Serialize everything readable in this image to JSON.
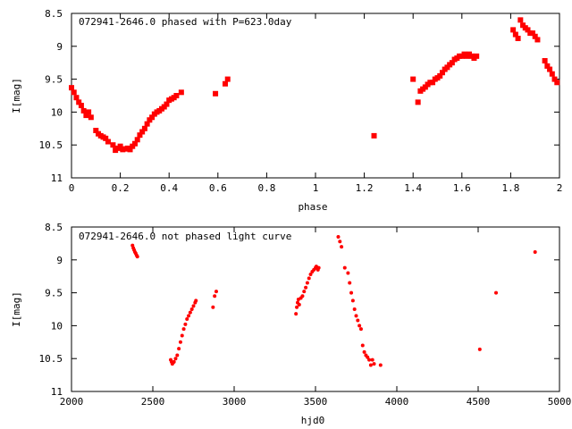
{
  "chart_data": [
    {
      "type": "scatter",
      "title": "072941-2646.0 phased with P=623.0day",
      "xlabel": "phase",
      "ylabel": "I[mag]",
      "xlim": [
        0,
        2
      ],
      "ylim": [
        8.5,
        11
      ],
      "y_inverted": true,
      "xticks": [
        "0",
        "0.2",
        "0.4",
        "0.6",
        "0.8",
        "1",
        "1.2",
        "1.4",
        "1.6",
        "1.8",
        "2"
      ],
      "yticks": [
        "8.5",
        "9",
        "9.5",
        "10",
        "10.5",
        "11"
      ],
      "marker_color": "#ff0000",
      "series": [
        {
          "x": [
            0.0,
            0.01,
            0.02,
            0.03,
            0.04,
            0.05,
            0.06,
            0.07,
            0.08,
            0.1,
            0.11,
            0.12,
            0.13,
            0.14,
            0.15,
            0.17,
            0.18,
            0.19,
            0.2,
            0.21,
            0.22,
            0.23,
            0.24,
            0.25,
            0.26,
            0.27,
            0.28,
            0.29,
            0.3,
            0.31,
            0.32,
            0.33,
            0.34,
            0.35,
            0.36,
            0.37,
            0.38,
            0.39,
            0.4,
            0.41,
            0.42,
            0.43,
            0.45,
            0.59,
            0.63,
            0.64,
            1.24,
            1.4,
            1.42,
            1.43,
            1.44,
            1.45,
            1.46,
            1.47,
            1.48,
            1.49,
            1.5,
            1.51,
            1.52,
            1.53,
            1.54,
            1.55,
            1.56,
            1.57,
            1.58,
            1.59,
            1.6,
            1.61,
            1.62,
            1.63,
            1.64,
            1.65,
            1.66,
            1.81,
            1.82,
            1.83,
            1.84,
            1.85,
            1.86,
            1.87,
            1.88,
            1.89,
            1.9,
            1.91,
            1.94,
            1.95,
            1.96,
            1.97,
            1.98,
            1.99
          ],
          "y": [
            9.63,
            9.7,
            9.78,
            9.85,
            9.9,
            9.98,
            10.05,
            10.0,
            10.08,
            10.28,
            10.33,
            10.36,
            10.38,
            10.4,
            10.45,
            10.5,
            10.58,
            10.55,
            10.52,
            10.57,
            10.56,
            10.55,
            10.57,
            10.52,
            10.48,
            10.42,
            10.35,
            10.3,
            10.25,
            10.18,
            10.12,
            10.08,
            10.03,
            10.0,
            9.98,
            9.95,
            9.92,
            9.88,
            9.82,
            9.8,
            9.78,
            9.75,
            9.7,
            9.72,
            9.57,
            9.5,
            10.36,
            9.5,
            9.85,
            9.68,
            9.65,
            9.62,
            9.58,
            9.55,
            9.55,
            9.5,
            9.48,
            9.45,
            9.4,
            9.35,
            9.32,
            9.28,
            9.25,
            9.2,
            9.18,
            9.15,
            9.15,
            9.12,
            9.15,
            9.12,
            9.15,
            9.18,
            9.15,
            8.75,
            8.82,
            8.88,
            8.6,
            8.68,
            8.72,
            8.75,
            8.8,
            8.8,
            8.85,
            8.9,
            9.22,
            9.3,
            9.35,
            9.42,
            9.5,
            9.55
          ]
        }
      ]
    },
    {
      "type": "scatter",
      "title": "072941-2646.0 not phased light curve",
      "xlabel": "hjd0",
      "ylabel": "I[mag]",
      "xlim": [
        2000,
        5000
      ],
      "ylim": [
        8.5,
        11
      ],
      "y_inverted": true,
      "xticks": [
        "2000",
        "2500",
        "3000",
        "3500",
        "4000",
        "4500",
        "5000"
      ],
      "yticks": [
        "8.5",
        "9",
        "9.5",
        "10",
        "10.5",
        "11"
      ],
      "marker_color": "#ff0000",
      "series": [
        {
          "x": [
            2375,
            2380,
            2385,
            2390,
            2395,
            2400,
            2405,
            2610,
            2615,
            2620,
            2625,
            2630,
            2640,
            2650,
            2660,
            2670,
            2680,
            2690,
            2700,
            2710,
            2720,
            2730,
            2740,
            2750,
            2760,
            2765,
            2870,
            2880,
            2890,
            3380,
            3385,
            3390,
            3395,
            3400,
            3410,
            3420,
            3430,
            3440,
            3450,
            3460,
            3470,
            3480,
            3490,
            3500,
            3505,
            3510,
            3515,
            3520,
            3640,
            3650,
            3660,
            3680,
            3700,
            3710,
            3720,
            3730,
            3740,
            3750,
            3760,
            3770,
            3780,
            3790,
            3800,
            3810,
            3820,
            3830,
            3840,
            3850,
            3860,
            3900,
            4510,
            4610,
            4850
          ],
          "y": [
            8.78,
            8.82,
            8.85,
            8.88,
            8.9,
            8.93,
            8.95,
            10.52,
            10.55,
            10.58,
            10.56,
            10.55,
            10.5,
            10.45,
            10.35,
            10.25,
            10.15,
            10.05,
            9.98,
            9.9,
            9.85,
            9.8,
            9.75,
            9.7,
            9.65,
            9.62,
            9.72,
            9.55,
            9.48,
            9.82,
            9.72,
            9.65,
            9.6,
            9.68,
            9.58,
            9.55,
            9.48,
            9.42,
            9.35,
            9.28,
            9.22,
            9.18,
            9.15,
            9.12,
            9.1,
            9.13,
            9.15,
            9.12,
            8.65,
            8.72,
            8.8,
            9.12,
            9.2,
            9.35,
            9.5,
            9.62,
            9.75,
            9.85,
            9.92,
            10.0,
            10.05,
            10.3,
            10.4,
            10.45,
            10.48,
            10.52,
            10.6,
            10.52,
            10.58,
            10.6,
            10.36,
            9.5,
            8.88
          ]
        }
      ]
    }
  ]
}
